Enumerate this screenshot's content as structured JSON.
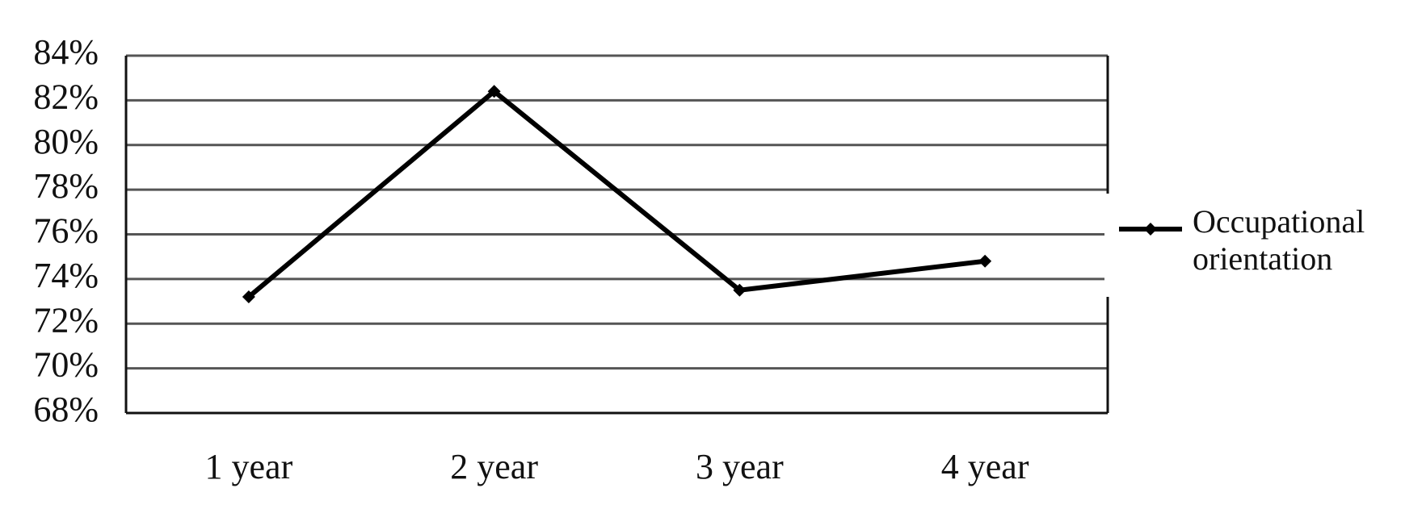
{
  "chart_data": {
    "type": "line",
    "categories": [
      "1 year",
      "2 year",
      "3 year",
      "4 year"
    ],
    "series": [
      {
        "name": "Occupational orientation",
        "color": "#000000",
        "values": [
          73.2,
          82.4,
          73.5,
          74.8
        ]
      }
    ],
    "ylim": [
      68,
      84
    ],
    "yticks": [
      {
        "value": 68,
        "label": "68%"
      },
      {
        "value": 70,
        "label": "70%"
      },
      {
        "value": 72,
        "label": "72%"
      },
      {
        "value": 74,
        "label": "74%"
      },
      {
        "value": 76,
        "label": "76%"
      },
      {
        "value": 78,
        "label": "78%"
      },
      {
        "value": 80,
        "label": "80%"
      },
      {
        "value": 82,
        "label": "82%"
      },
      {
        "value": 84,
        "label": "84%"
      }
    ],
    "grid": true,
    "legend": "right"
  }
}
